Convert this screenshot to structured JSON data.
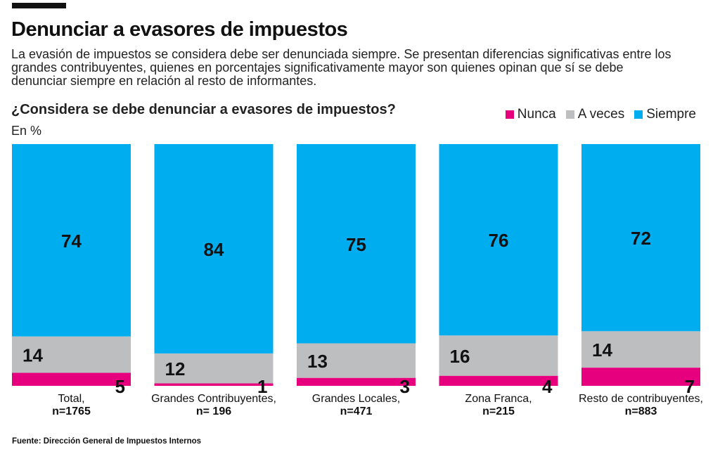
{
  "header": {
    "title": "Denunciar a evasores de impuestos",
    "subtitle": "La evasión de impuestos se considera debe ser denunciada siempre. Se presentan diferencias significativas entre los grandes contribuyentes, quienes en porcentajes significativamente mayor son quienes opinan que sí se debe denunciar siempre en relación al resto de informantes."
  },
  "source": "Fuente: Dirección General de Impuestos Internos",
  "chart_data": {
    "type": "bar",
    "stacked": true,
    "title": "¿Considera se debe denunciar a evasores de impuestos?",
    "ylabel": "En %",
    "legend_placement": "top-right",
    "categories": [
      {
        "name": "Total,",
        "n": "n=1765"
      },
      {
        "name": "Grandes Contribuyentes,",
        "n": "n= 196"
      },
      {
        "name": "Grandes Locales,",
        "n": "n=471"
      },
      {
        "name": "Zona Franca,",
        "n": "n=215"
      },
      {
        "name": "Resto de contribuyentes,",
        "n": "n=883"
      }
    ],
    "series": [
      {
        "name": "Nunca",
        "color": "#e6007e",
        "values": [
          5,
          1,
          3,
          4,
          7
        ]
      },
      {
        "name": "A veces",
        "color": "#bdbec0",
        "values": [
          14,
          12,
          13,
          16,
          14
        ]
      },
      {
        "name": "Siempre",
        "color": "#00adef",
        "values": [
          74,
          84,
          75,
          76,
          72
        ]
      }
    ]
  }
}
